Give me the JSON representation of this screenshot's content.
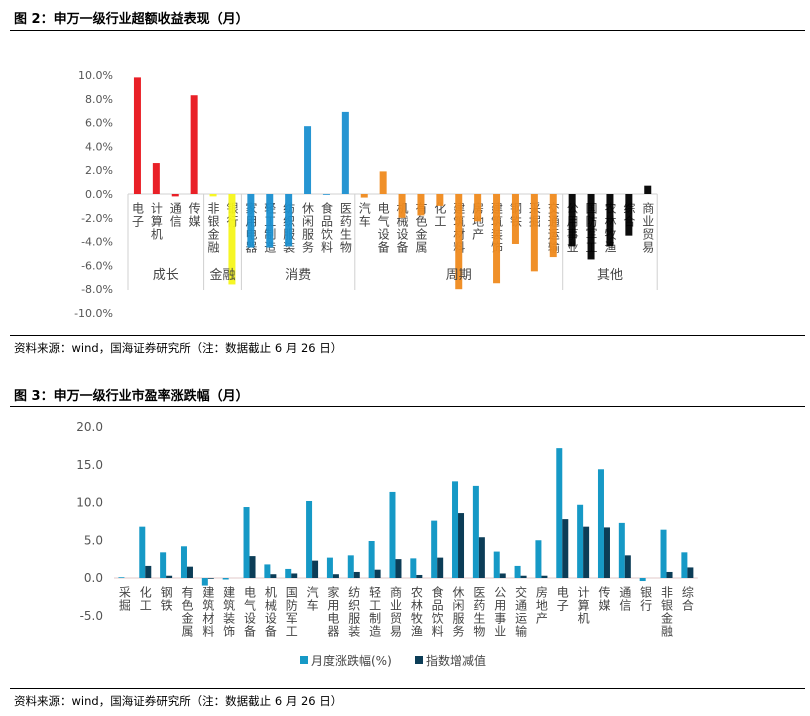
{
  "fig2": {
    "title": "图 2：申万一级行业超额收益表现（月）",
    "source": "资料来源：wind，国海证券研究所（注：数据截止 6 月 26 日）"
  },
  "fig3": {
    "title": "图 3：申万一级行业市盈率涨跌幅（月）",
    "source": "资料来源：wind，国海证券研究所（注：数据截止 6 月 26 日）"
  },
  "chart_data": [
    {
      "type": "bar",
      "title": "申万一级行业超额收益表现（月）",
      "ylim": [
        -10,
        10
      ],
      "yticks": [
        10,
        8,
        6,
        4,
        2,
        0,
        -2,
        -4,
        -6,
        -8,
        -10
      ],
      "ytick_format": "percent",
      "groups": [
        {
          "name": "成长",
          "color": "#e8141b",
          "categories": [
            "电子",
            "计算机",
            "通信",
            "传媒"
          ],
          "values": [
            9.8,
            2.6,
            -0.2,
            8.3
          ]
        },
        {
          "name": "金融",
          "color": "#f5f51a",
          "categories": [
            "非银金融",
            "银行"
          ],
          "values": [
            -0.2,
            -7.6
          ]
        },
        {
          "name": "消费",
          "color": "#1a8fd0",
          "categories": [
            "家用电器",
            "轻工制造",
            "纺织服装",
            "休闲服务",
            "食品饮料",
            "医药生物"
          ],
          "values": [
            -4.5,
            -4.5,
            -4.4,
            5.7,
            0.0,
            6.9
          ]
        },
        {
          "name": "周期",
          "color": "#ef8a1e",
          "categories": [
            "汽车",
            "电气设备",
            "机械设备",
            "有色金属",
            "化工",
            "建筑材料",
            "房地产",
            "建筑装饰",
            "钢铁",
            "采掘",
            "交通运输"
          ],
          "values": [
            -0.3,
            1.9,
            -2.0,
            -1.8,
            -1.0,
            -8.0,
            -2.3,
            -7.5,
            -4.2,
            -6.5,
            -5.3
          ]
        },
        {
          "name": "其他",
          "color": "#000000",
          "categories": [
            "公用事业",
            "国防军工",
            "农林牧渔",
            "综合",
            "商业贸易"
          ],
          "values": [
            -4.4,
            -5.5,
            -4.4,
            -3.5,
            0.7
          ]
        }
      ]
    },
    {
      "type": "bar",
      "title": "申万一级行业市盈率涨跌幅（月）",
      "ylim": [
        -5,
        20
      ],
      "yticks": [
        "20.0",
        "15.0",
        "10.0",
        "5.0",
        "0.0",
        "-5.0"
      ],
      "categories": [
        "采掘",
        "化工",
        "钢铁",
        "有色金属",
        "建筑材料",
        "建筑装饰",
        "电气设备",
        "机械设备",
        "国防军工",
        "汽车",
        "家用电器",
        "纺织服装",
        "轻工制造",
        "商业贸易",
        "农林牧渔",
        "食品饮料",
        "休闲服务",
        "医药生物",
        "公用事业",
        "交通运输",
        "房地产",
        "电子",
        "计算机",
        "传媒",
        "通信",
        "银行",
        "非银金融",
        "综合"
      ],
      "series": [
        {
          "name": "月度涨跌幅(%)",
          "color": "#1699c6",
          "values": [
            0.1,
            6.8,
            3.4,
            4.2,
            -1.0,
            -0.2,
            9.4,
            1.8,
            1.2,
            10.2,
            2.7,
            3.0,
            4.9,
            11.4,
            2.6,
            7.6,
            12.8,
            12.2,
            3.5,
            1.6,
            5.0,
            17.2,
            9.7,
            14.4,
            7.3,
            -0.4,
            6.4,
            3.4
          ]
        },
        {
          "name": "指数增减值",
          "color": "#0c3d57",
          "values": [
            0,
            1.6,
            0.3,
            1.5,
            -0.1,
            0,
            2.9,
            0.5,
            0.6,
            2.3,
            0.5,
            0.8,
            1.1,
            2.5,
            0.4,
            2.7,
            8.6,
            5.4,
            0.6,
            0.3,
            0.3,
            7.8,
            6.8,
            6.7,
            3.0,
            0,
            0.8,
            1.4
          ]
        }
      ]
    }
  ]
}
